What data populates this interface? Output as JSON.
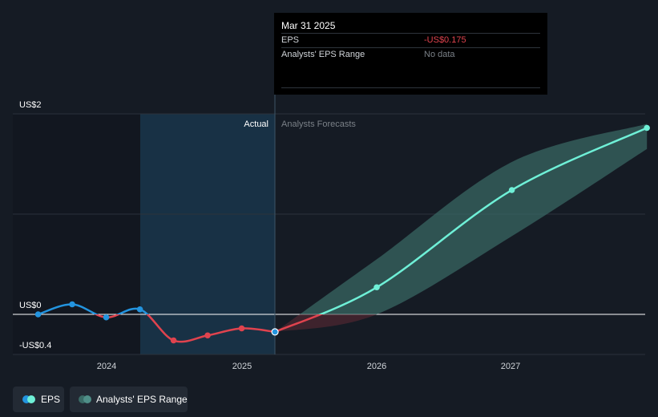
{
  "chart_data": {
    "type": "line",
    "x_axis": {
      "ticks": [
        "2024",
        "2025",
        "2026",
        "2027"
      ]
    },
    "y_axis": {
      "ticks": [
        "US$2",
        "US$0",
        "-US$0.4"
      ],
      "ylim": [
        -0.4,
        2
      ]
    },
    "regions": {
      "actual_label": "Actual",
      "forecast_label": "Analysts Forecasts"
    },
    "series": [
      {
        "name": "EPS",
        "kind": "actual",
        "points": [
          {
            "x": "2023-06-30",
            "y": 0.0
          },
          {
            "x": "2023-09-30",
            "y": 0.1
          },
          {
            "x": "2023-12-31",
            "y": -0.03
          },
          {
            "x": "2024-03-31",
            "y": 0.05
          },
          {
            "x": "2024-06-30",
            "y": -0.26
          },
          {
            "x": "2024-09-30",
            "y": -0.21
          },
          {
            "x": "2024-12-31",
            "y": -0.14
          },
          {
            "x": "2025-03-31",
            "y": -0.175
          }
        ]
      },
      {
        "name": "EPS",
        "kind": "forecast",
        "points": [
          {
            "x": "2025-03-31",
            "y": -0.175
          },
          {
            "x": "2025-12-31",
            "y": 0.27
          },
          {
            "x": "2026-12-31",
            "y": 1.24
          },
          {
            "x": "2027-12-31",
            "y": 1.86
          }
        ]
      },
      {
        "name": "Analysts' EPS Range",
        "kind": "range",
        "low": [
          {
            "x": "2025-03-31",
            "y": -0.175
          },
          {
            "x": "2025-12-31",
            "y": 0.0
          },
          {
            "x": "2026-12-31",
            "y": 0.78
          },
          {
            "x": "2027-12-31",
            "y": 1.65
          }
        ],
        "high": [
          {
            "x": "2025-03-31",
            "y": -0.175
          },
          {
            "x": "2025-12-31",
            "y": 0.55
          },
          {
            "x": "2026-12-31",
            "y": 1.52
          },
          {
            "x": "2027-12-31",
            "y": 1.9
          }
        ]
      }
    ]
  },
  "tooltip": {
    "date": "Mar 31 2025",
    "eps_label": "EPS",
    "eps_value": "-US$0.175",
    "range_label": "Analysts' EPS Range",
    "range_value": "No data"
  },
  "legend": {
    "eps_label": "EPS",
    "range_label": "Analysts' EPS Range"
  },
  "colors": {
    "actual_positive": "#2394df",
    "actual_negative": "#e0434e",
    "forecast": "#6ff0d7",
    "range_fill": "#3a6b66",
    "negative_value_text": "#e0434e",
    "muted_text": "#7a8087"
  }
}
